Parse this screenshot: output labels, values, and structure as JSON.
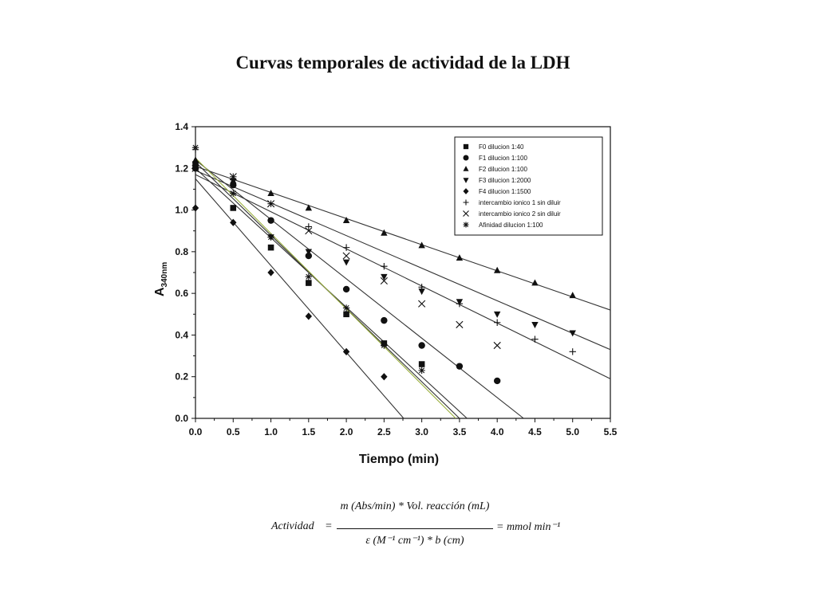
{
  "title": "Curvas temporales de actividad de la LDH",
  "chart_data": {
    "type": "scatter",
    "title": "Curvas temporales de actividad de la LDH",
    "xlabel": "Tiempo (min)",
    "ylabel_main": "A",
    "ylabel_sub": "340nm",
    "xlim": [
      0.0,
      5.5
    ],
    "ylim": [
      0.0,
      1.4
    ],
    "xticks": [
      "0.0",
      "0.5",
      "1.0",
      "1.5",
      "2.0",
      "2.5",
      "3.0",
      "3.5",
      "4.0",
      "4.5",
      "5.0",
      "5.5"
    ],
    "yticks": [
      "0.0",
      "0.2",
      "0.4",
      "0.6",
      "0.8",
      "1.0",
      "1.2",
      "1.4"
    ],
    "grid": false,
    "legend_position": "top-right",
    "series": [
      {
        "name": "F0 dilucion 1:40",
        "marker": "square",
        "x": [
          0,
          0.5,
          1.0,
          1.5,
          2.0,
          2.5,
          3.0
        ],
        "y": [
          1.22,
          1.01,
          0.82,
          0.65,
          0.5,
          0.36,
          0.26
        ],
        "fit": [
          [
            0,
            1.23
          ],
          [
            3.5,
            0.0
          ]
        ],
        "fit_color": "#333333"
      },
      {
        "name": "F1 dilucion 1:100",
        "marker": "circle",
        "x": [
          0,
          0.5,
          1.0,
          1.5,
          2.0,
          2.5,
          3.0,
          3.5,
          4.0
        ],
        "y": [
          1.2,
          1.12,
          0.95,
          0.78,
          0.62,
          0.47,
          0.35,
          0.25,
          0.18
        ],
        "fit": [
          [
            0,
            1.2
          ],
          [
            3.6,
            0.0
          ]
        ],
        "fit_color": "#333333"
      },
      {
        "name": "F2 dilucion 1:100",
        "marker": "triangle-up",
        "x": [
          0,
          0.5,
          1.0,
          1.5,
          2.0,
          2.5,
          3.0,
          3.5,
          4.0,
          4.5,
          5.0
        ],
        "y": [
          1.24,
          1.14,
          1.08,
          1.01,
          0.95,
          0.89,
          0.83,
          0.77,
          0.71,
          0.65,
          0.59
        ],
        "fit": [
          [
            0,
            1.21
          ],
          [
            5.5,
            0.52
          ]
        ],
        "fit_color": "#333333"
      },
      {
        "name": "F3 dilucion 1:2000",
        "marker": "triangle-down",
        "x": [
          0,
          0.5,
          1.0,
          1.5,
          2.0,
          2.5,
          3.0,
          3.5,
          4.0,
          4.5,
          5.0
        ],
        "y": [
          1.22,
          1.14,
          0.87,
          0.8,
          0.75,
          0.68,
          0.61,
          0.56,
          0.5,
          0.45,
          0.41
        ],
        "fit": [
          [
            0,
            1.19
          ],
          [
            5.5,
            0.33
          ]
        ],
        "fit_color": "#333333"
      },
      {
        "name": "F4 dilucion 1:1500",
        "marker": "diamond",
        "x": [
          0,
          0.5,
          1.0,
          1.5,
          2.0,
          2.5
        ],
        "y": [
          1.01,
          0.94,
          0.7,
          0.49,
          0.32,
          0.2
        ],
        "fit": [
          [
            0,
            1.15
          ],
          [
            2.76,
            0.0
          ]
        ],
        "fit_color": "#333333"
      },
      {
        "name": "intercambio ionico 1 sin diluir",
        "marker": "plus",
        "x": [
          0,
          0.5,
          1.0,
          1.5,
          2.0,
          2.5,
          3.0,
          3.5,
          4.0,
          4.5,
          5.0
        ],
        "y": [
          1.29,
          1.16,
          1.03,
          0.92,
          0.82,
          0.73,
          0.63,
          0.55,
          0.46,
          0.38,
          0.32
        ],
        "fit": [
          [
            0,
            1.17
          ],
          [
            5.5,
            0.19
          ]
        ],
        "fit_color": "#333333"
      },
      {
        "name": "intercambio ionico 2 sin diluir",
        "marker": "cross",
        "x": [
          0,
          0.5,
          1.0,
          1.5,
          2.0,
          2.5,
          3.0,
          3.5,
          4.0
        ],
        "y": [
          1.2,
          1.16,
          1.03,
          0.9,
          0.78,
          0.66,
          0.55,
          0.45,
          0.35
        ],
        "fit": [
          [
            0,
            1.24
          ],
          [
            4.35,
            0.0
          ]
        ],
        "fit_color": "#333333"
      },
      {
        "name": "Afinidad dilucion 1:100",
        "marker": "asterisk",
        "x": [
          0,
          0.5,
          1.0,
          1.5,
          2.0,
          2.5,
          3.0
        ],
        "y": [
          1.3,
          1.08,
          0.87,
          0.68,
          0.53,
          0.35,
          0.23
        ],
        "fit": [
          [
            0,
            1.25
          ],
          [
            3.45,
            0.0
          ]
        ],
        "fit_color": "#9bb040"
      }
    ]
  },
  "formula": {
    "lhs": "Actividad",
    "equals": "=",
    "numerator": "m (Abs/min) * Vol. reacción (mL)",
    "denominator": "ε (M⁻¹ cm⁻¹) * b (cm)",
    "rhs": "= mmol min⁻¹"
  }
}
